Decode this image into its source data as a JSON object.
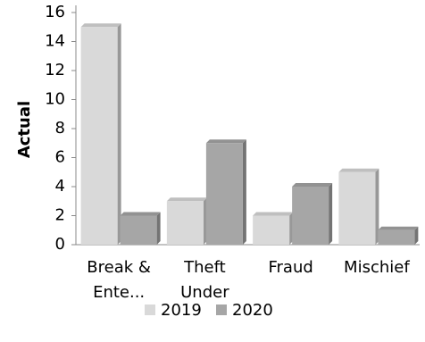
{
  "chart_data": {
    "type": "bar",
    "y_label": "Actual",
    "categories": [
      [
        "Break &",
        "Ente..."
      ],
      [
        "Theft",
        "Under"
      ],
      [
        "Fraud"
      ],
      [
        "Mischief"
      ]
    ],
    "series": [
      {
        "name": "2019",
        "color": "#d9d9d9",
        "values": [
          15,
          3,
          2,
          5
        ]
      },
      {
        "name": "2020",
        "color": "#a6a6a6",
        "values": [
          2,
          7,
          4,
          1
        ]
      }
    ],
    "ylim": [
      0,
      16
    ],
    "yticks": [
      0,
      2,
      4,
      6,
      8,
      10,
      12,
      14,
      16
    ],
    "grid": false,
    "legend": "bottom"
  }
}
